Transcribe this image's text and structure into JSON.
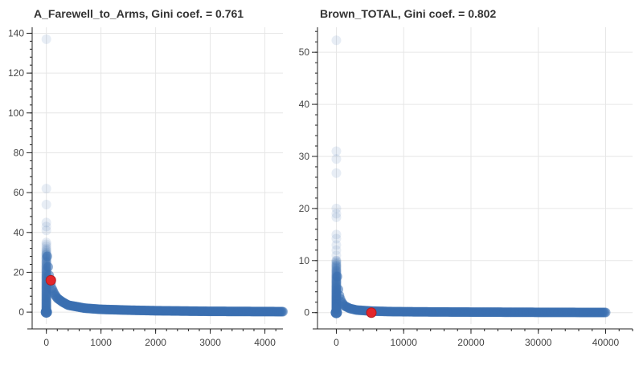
{
  "colors": {
    "point": "#3a6fb0",
    "highlight": "#e3262b",
    "grid": "#e6e6e6",
    "axis": "#222222"
  },
  "chart_data": [
    {
      "type": "scatter",
      "title": "A_Farewell_to_Arms, Gini coef. = 0.761",
      "xlabel": "",
      "ylabel": "",
      "xlim": [
        -260,
        4330
      ],
      "ylim": [
        -6,
        143
      ],
      "x_ticks": [
        0,
        1000,
        2000,
        3000,
        4000
      ],
      "y_ticks": [
        0,
        20,
        40,
        60,
        80,
        100,
        120,
        140
      ],
      "grid": true,
      "highlight_point": {
        "x": 82,
        "y": 16
      },
      "series": [
        {
          "x": [
            0,
            0,
            0,
            0,
            0,
            0,
            0,
            0,
            0,
            0,
            0,
            0,
            0,
            0,
            0,
            0,
            0,
            0,
            0
          ],
          "y": [
            137,
            62,
            54,
            45,
            43,
            41,
            35,
            34,
            33,
            29,
            27,
            25,
            23,
            21,
            19,
            18,
            17,
            15,
            13
          ]
        },
        {
          "x": [
            0,
            5,
            10,
            20,
            30,
            40,
            60,
            80,
            100,
            150,
            200,
            300,
            400,
            500,
            700,
            1000,
            1500,
            2000,
            3000,
            4330
          ],
          "y": [
            0,
            32,
            30,
            27,
            24,
            20,
            17,
            15,
            12,
            9,
            7,
            5,
            3.5,
            3,
            2,
            1.4,
            1,
            0.7,
            0.4,
            0.25
          ]
        }
      ]
    },
    {
      "type": "scatter",
      "title": "Brown_TOTAL, Gini coef. = 0.802",
      "xlabel": "",
      "ylabel": "",
      "xlim": [
        -2800,
        44000
      ],
      "ylim": [
        -2.2,
        54.8
      ],
      "x_ticks": [
        0,
        10000,
        20000,
        30000,
        40000
      ],
      "y_ticks": [
        0,
        10,
        20,
        30,
        40,
        50
      ],
      "grid": true,
      "highlight_point": {
        "x": 5200,
        "y": 0
      },
      "series": [
        {
          "x": [
            0,
            0,
            0,
            0,
            0,
            0,
            0,
            0,
            0,
            0,
            0,
            0,
            0,
            0,
            0,
            0,
            0,
            0,
            0,
            0,
            0
          ],
          "y": [
            52.3,
            31,
            29.5,
            26.8,
            20,
            19,
            18.3,
            15,
            14.2,
            13,
            12,
            11,
            10,
            9,
            8,
            7,
            6,
            5,
            4,
            3,
            2
          ]
        },
        {
          "x": [
            0,
            50,
            100,
            200,
            300,
            500,
            800,
            1200,
            2000,
            3000,
            5200,
            8000,
            12000,
            20000,
            30000,
            40000
          ],
          "y": [
            0,
            10,
            8,
            6,
            4.5,
            3,
            2,
            1.3,
            0.8,
            0.5,
            0.3,
            0.2,
            0.15,
            0.1,
            0.06,
            0.03
          ]
        }
      ]
    }
  ]
}
